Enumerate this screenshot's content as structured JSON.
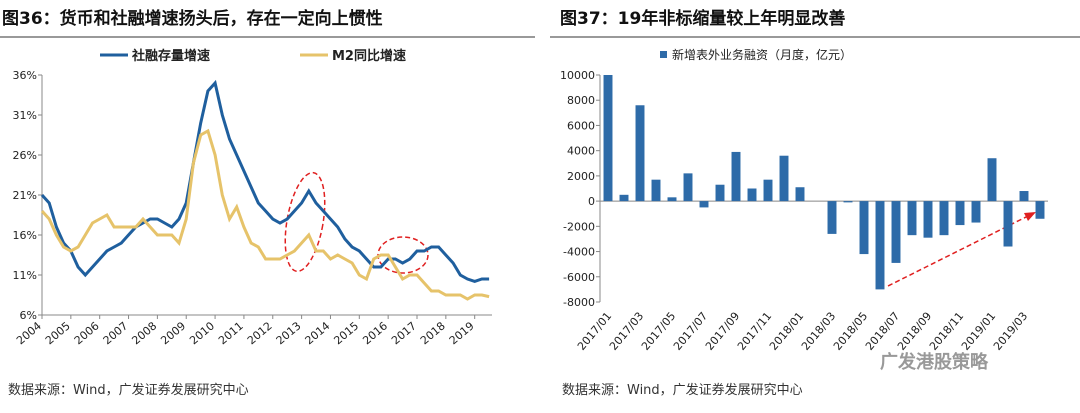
{
  "chart_data": [
    {
      "type": "line",
      "title": "图36：货币和社融增速扬头后，存在一定向上惯性",
      "source": "数据来源：Wind，广发证券发展研究中心",
      "xlim": [
        2004,
        2019.6
      ],
      "xticks": [
        2004,
        2005,
        2006,
        2007,
        2008,
        2009,
        2010,
        2011,
        2012,
        2013,
        2014,
        2015,
        2016,
        2017,
        2018,
        2019
      ],
      "ylim": [
        6,
        36
      ],
      "yticks": [
        {
          "value": 6,
          "label": "6%"
        },
        {
          "value": 11,
          "label": "11%"
        },
        {
          "value": 16,
          "label": "16%"
        },
        {
          "value": 21,
          "label": "21%"
        },
        {
          "value": 26,
          "label": "26%"
        },
        {
          "value": 31,
          "label": "31%"
        },
        {
          "value": 36,
          "label": "36%"
        }
      ],
      "x": [
        2004,
        2004.25,
        2004.5,
        2004.75,
        2005,
        2005.25,
        2005.5,
        2005.75,
        2006,
        2006.25,
        2006.5,
        2006.75,
        2007,
        2007.25,
        2007.5,
        2007.75,
        2008,
        2008.25,
        2008.5,
        2008.75,
        2009,
        2009.25,
        2009.5,
        2009.75,
        2010,
        2010.25,
        2010.5,
        2010.75,
        2011,
        2011.25,
        2011.5,
        2011.75,
        2012,
        2012.25,
        2012.5,
        2012.75,
        2013,
        2013.25,
        2013.5,
        2013.75,
        2014,
        2014.25,
        2014.5,
        2014.75,
        2015,
        2015.25,
        2015.5,
        2015.75,
        2016,
        2016.25,
        2016.5,
        2016.75,
        2017,
        2017.25,
        2017.5,
        2017.75,
        2018,
        2018.25,
        2018.5,
        2018.75,
        2019,
        2019.25,
        2019.5
      ],
      "series": [
        {
          "name": "社融存量增速",
          "color": "#1f5f9e",
          "values": [
            21,
            20,
            17,
            15,
            14,
            12,
            11,
            12,
            13,
            14,
            14.5,
            15,
            16,
            17,
            17.5,
            18,
            18,
            17.5,
            17,
            18,
            20,
            25,
            30,
            34,
            35,
            31,
            28,
            26,
            24,
            22,
            20,
            19,
            18,
            17.5,
            18,
            19,
            20,
            21.5,
            20,
            19,
            18,
            17,
            15.5,
            14.5,
            14,
            13,
            12,
            12,
            13,
            13,
            12.5,
            13,
            14,
            14,
            14.5,
            14.5,
            13.5,
            12.5,
            11,
            10.5,
            10.2,
            10.5,
            10.5
          ]
        },
        {
          "name": "M2同比增速",
          "color": "#e6c36a",
          "values": [
            19,
            18,
            16,
            14.5,
            14,
            14.5,
            16,
            17.5,
            18,
            18.5,
            17,
            17,
            17,
            17,
            18,
            17,
            16,
            16,
            16,
            15,
            18,
            25,
            28.5,
            29,
            26,
            21,
            18,
            19.5,
            17,
            15,
            14.5,
            13,
            13,
            13,
            13.5,
            14,
            15,
            16,
            14,
            14,
            13,
            13.5,
            13,
            12.5,
            11,
            10.5,
            13,
            13.5,
            13.5,
            12,
            10.5,
            11,
            11,
            10,
            9,
            9,
            8.5,
            8.5,
            8.5,
            8,
            8.5,
            8.5,
            8.3
          ]
        }
      ]
    },
    {
      "type": "bar",
      "title": "图37：19年非标缩量较上年明显改善",
      "source": "数据来源：Wind，广发证券发展研究中心",
      "categories": [
        "2017/01",
        null,
        "2017/03",
        null,
        "2017/05",
        null,
        "2017/07",
        null,
        "2017/09",
        null,
        "2017/11",
        null,
        "2018/01",
        null,
        "2018/03",
        null,
        "2018/05",
        null,
        "2018/07",
        null,
        "2018/09",
        null,
        "2018/11",
        null,
        "2019/01",
        null,
        "2019/03",
        null
      ],
      "series": [
        {
          "name": "新增表外业务融资（月度，亿元）",
          "color": "#2e6ba8",
          "values": [
            10000,
            500,
            7600,
            1700,
            300,
            2200,
            -500,
            1300,
            3900,
            1000,
            1700,
            3600,
            1100,
            0,
            -2600,
            -100,
            -4200,
            -7000,
            -4900,
            -2700,
            -2900,
            -2700,
            -1900,
            -1700,
            3400,
            -3600,
            800,
            -1400
          ]
        }
      ],
      "ylim": [
        -8000,
        10000
      ],
      "yticks": [
        -8000,
        -6000,
        -4000,
        -2000,
        0,
        2000,
        4000,
        6000,
        8000,
        10000
      ]
    }
  ],
  "watermark": "广发港股策略"
}
